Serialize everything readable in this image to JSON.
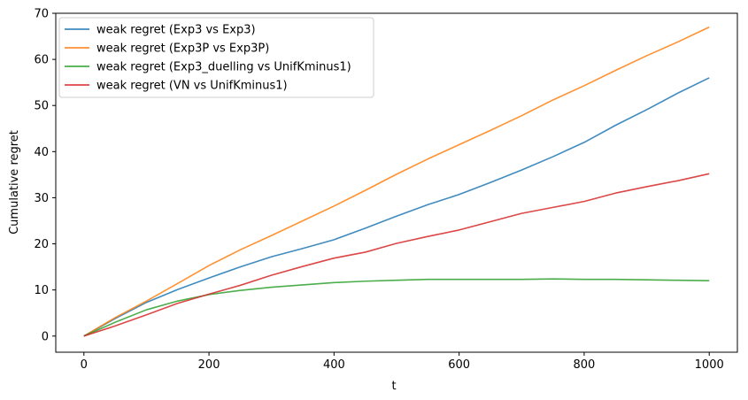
{
  "chart_data": {
    "type": "line",
    "title": "",
    "xlabel": "t",
    "ylabel": "Cumulative regret",
    "xlim": [
      -45,
      1045
    ],
    "ylim": [
      -3.5,
      70
    ],
    "xticks": [
      0,
      200,
      400,
      600,
      800,
      1000
    ],
    "yticks": [
      0,
      10,
      20,
      30,
      40,
      50,
      60,
      70
    ],
    "grid": false,
    "legend_position": "top-left",
    "series": [
      {
        "name": "weak regret (Exp3 vs Exp3)",
        "color": "#1f77b4",
        "x": [
          0,
          50,
          100,
          150,
          200,
          250,
          300,
          350,
          400,
          450,
          500,
          550,
          600,
          650,
          700,
          750,
          800,
          850,
          900,
          950,
          1000
        ],
        "y": [
          0,
          3.8,
          7.3,
          10.1,
          12.6,
          15.0,
          17.2,
          19.0,
          20.9,
          23.4,
          26.0,
          28.5,
          30.7,
          33.3,
          36.0,
          38.9,
          42.0,
          45.7,
          49.1,
          52.7,
          56.0
        ]
      },
      {
        "name": "weak regret (Exp3P vs Exp3P)",
        "color": "#ff7f0e",
        "x": [
          0,
          50,
          100,
          150,
          200,
          250,
          300,
          350,
          400,
          450,
          500,
          550,
          600,
          650,
          700,
          750,
          800,
          850,
          900,
          950,
          1000
        ],
        "y": [
          0,
          4.0,
          7.6,
          11.4,
          15.3,
          18.7,
          21.8,
          25.0,
          28.2,
          31.6,
          35.1,
          38.4,
          41.5,
          44.6,
          47.8,
          51.2,
          54.3,
          57.6,
          60.8,
          63.8,
          67.0
        ]
      },
      {
        "name": "weak regret (Exp3_duelling vs UnifKminus1)",
        "color": "#2ca02c",
        "x": [
          0,
          50,
          100,
          150,
          200,
          250,
          300,
          350,
          400,
          450,
          500,
          550,
          600,
          650,
          700,
          750,
          800,
          850,
          900,
          950,
          1000
        ],
        "y": [
          0,
          3.0,
          5.7,
          7.6,
          9.0,
          9.9,
          10.6,
          11.1,
          11.6,
          11.9,
          12.1,
          12.3,
          12.3,
          12.3,
          12.3,
          12.4,
          12.3,
          12.3,
          12.2,
          12.1,
          12.0
        ]
      },
      {
        "name": "weak regret (VN vs UnifKminus1)",
        "color": "#d62728",
        "x": [
          0,
          50,
          100,
          150,
          200,
          250,
          300,
          350,
          400,
          450,
          500,
          550,
          600,
          650,
          700,
          750,
          800,
          850,
          900,
          950,
          1000
        ],
        "y": [
          0,
          2.2,
          4.6,
          7.1,
          9.1,
          11.0,
          13.2,
          15.1,
          16.9,
          18.2,
          20.1,
          21.6,
          23.0,
          24.8,
          26.6,
          27.9,
          29.2,
          31.0,
          32.4,
          33.7,
          35.2
        ]
      }
    ]
  }
}
